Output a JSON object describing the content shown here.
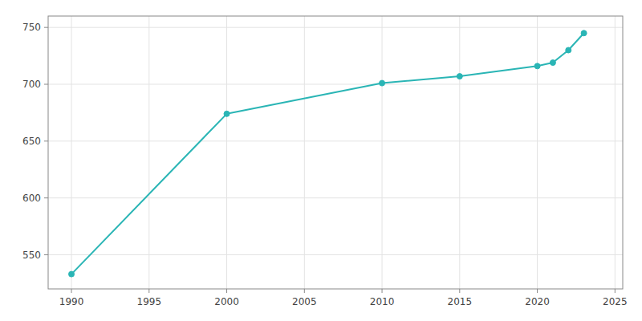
{
  "chart_data": {
    "type": "line",
    "x": [
      1990,
      2000,
      2010,
      2015,
      2020,
      2021,
      2022,
      2023
    ],
    "values": [
      533,
      674,
      701,
      707,
      716,
      719,
      730,
      745
    ],
    "color": "#2ab5b5",
    "marker": "circle",
    "xlim": [
      1988.5,
      2025.5
    ],
    "ylim": [
      520,
      760
    ],
    "xticks": [
      1990,
      1995,
      2000,
      2005,
      2010,
      2015,
      2020,
      2025
    ],
    "yticks": [
      550,
      600,
      650,
      700,
      750
    ],
    "grid": true
  }
}
